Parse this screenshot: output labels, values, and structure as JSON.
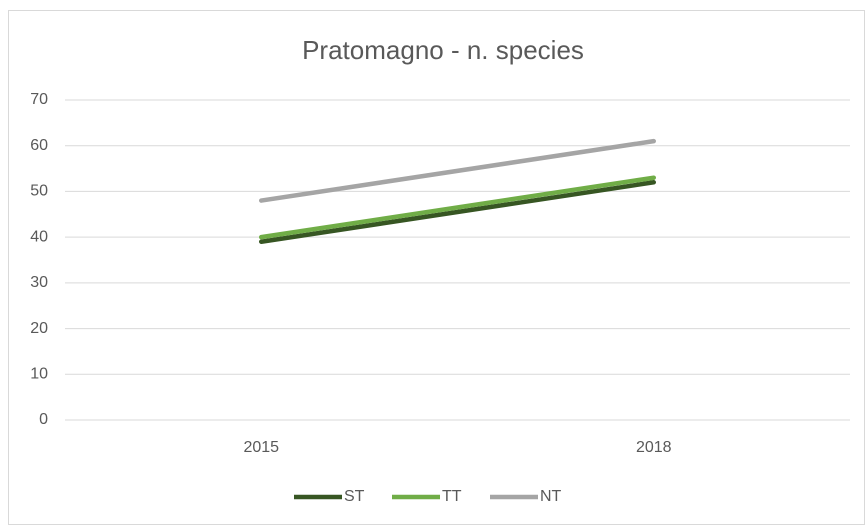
{
  "chart_data": {
    "type": "line",
    "title": "Pratomagno - n. species",
    "categories": [
      "2015",
      "2018"
    ],
    "series": [
      {
        "name": "ST",
        "color": "#375623",
        "values": [
          39,
          52
        ]
      },
      {
        "name": "TT",
        "color": "#70ad47",
        "values": [
          40,
          53
        ]
      },
      {
        "name": "NT",
        "color": "#a5a5a5",
        "values": [
          48,
          61
        ]
      }
    ],
    "ylim": [
      0,
      70
    ],
    "yticks": [
      0,
      10,
      20,
      30,
      40,
      50,
      60,
      70
    ],
    "grid": true,
    "legend": "bottom"
  }
}
